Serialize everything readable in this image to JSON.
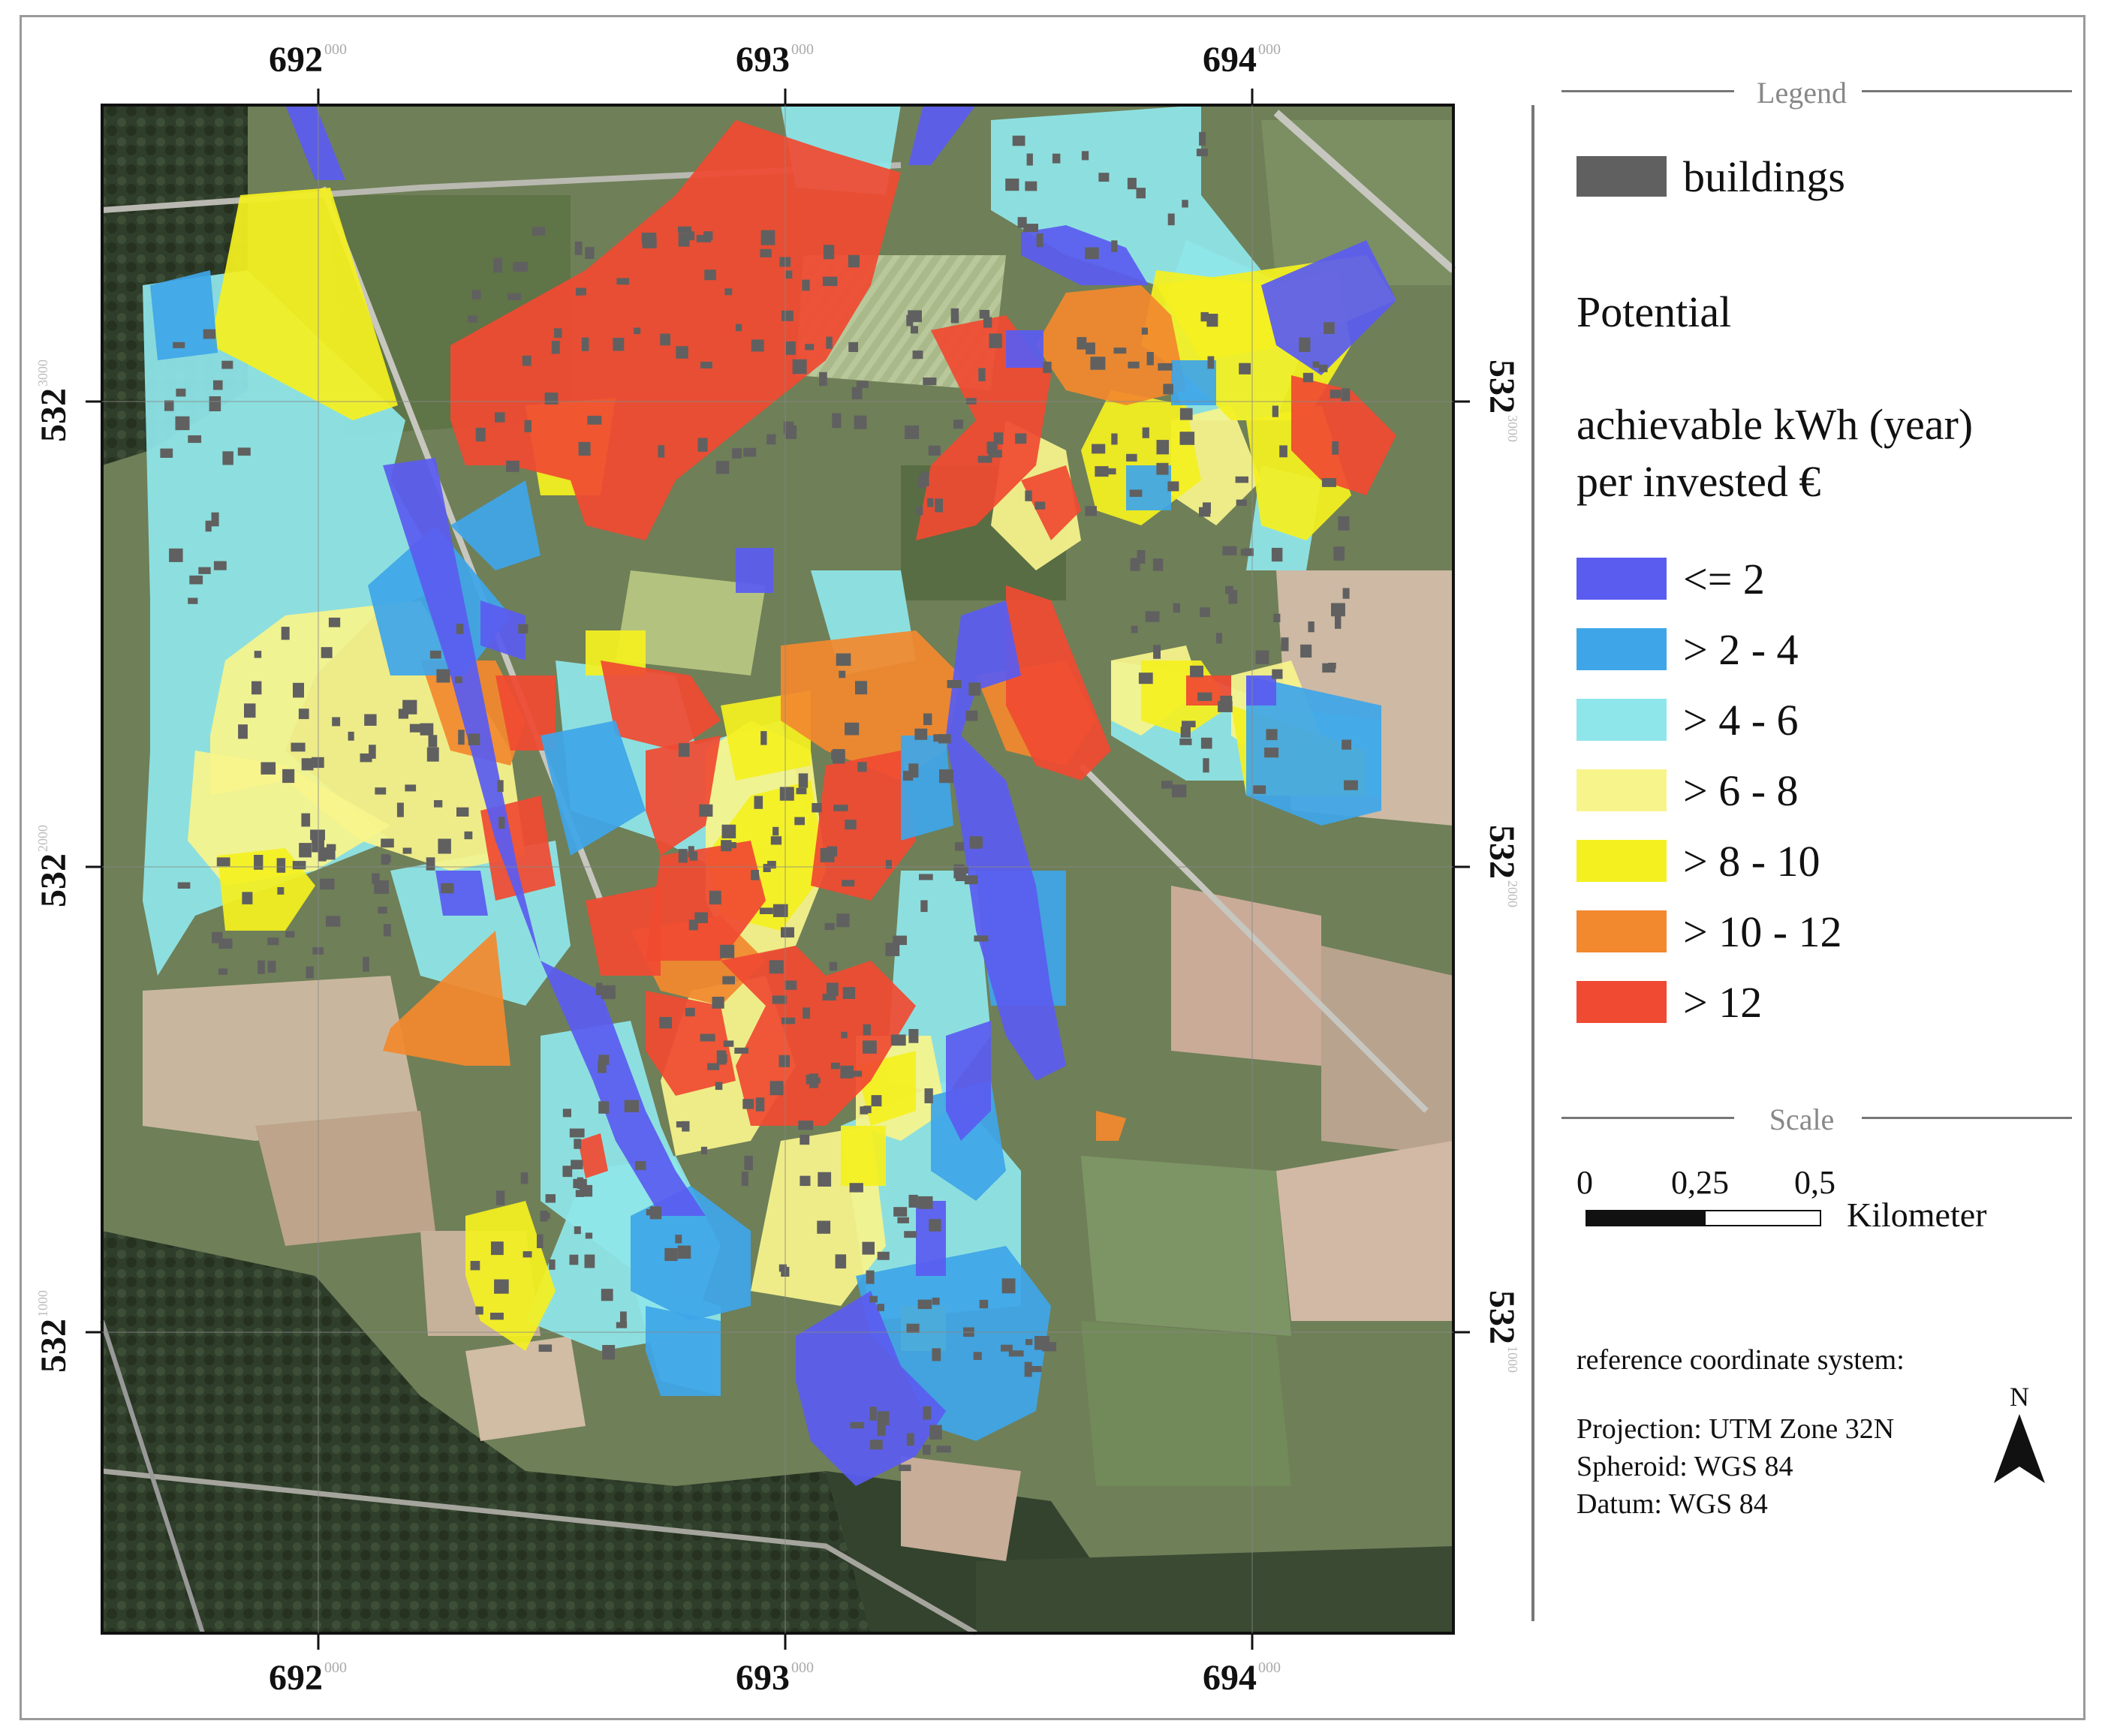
{
  "axes": {
    "x_ticks": [
      {
        "major": "692",
        "minor": "000"
      },
      {
        "major": "693",
        "minor": "000"
      },
      {
        "major": "694",
        "minor": "000"
      }
    ],
    "y_ticks": [
      {
        "major": "532",
        "minor": "3000"
      },
      {
        "major": "532",
        "minor": "2000"
      },
      {
        "major": "532",
        "minor": "1000"
      }
    ]
  },
  "legend": {
    "title": "Legend",
    "buildings_label": "buildings",
    "potential_heading": "Potential",
    "unit_line1": "achievable kWh (year)",
    "unit_line2": "per invested €",
    "classes": [
      {
        "label": "<= 2",
        "color": "#5a5cf0"
      },
      {
        "label": "> 2 - 4",
        "color": "#3ea6e8"
      },
      {
        "label": "> 4 - 6",
        "color": "#8fe6ea"
      },
      {
        "label": "> 6 - 8",
        "color": "#f8f48c"
      },
      {
        "label": "> 8 - 10",
        "color": "#f4f020"
      },
      {
        "label": "> 10 - 12",
        "color": "#f2892e"
      },
      {
        "label": "> 12",
        "color": "#f04a32"
      }
    ],
    "buildings_color": "#606060"
  },
  "scale": {
    "title": "Scale",
    "ticks": [
      "0",
      "0,25",
      "0,5"
    ],
    "unit": "Kilometer"
  },
  "crs": {
    "heading": "reference coordinate system:",
    "projection": "Projection: UTM Zone 32N",
    "spheroid": "Spheroid: WGS 84",
    "datum": "Datum: WGS 84"
  },
  "north_label": "N"
}
